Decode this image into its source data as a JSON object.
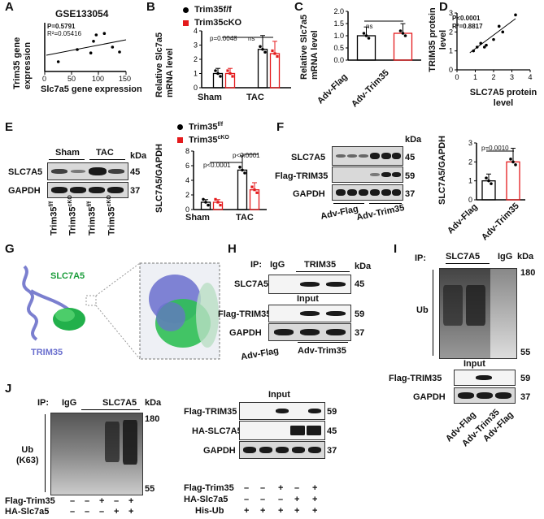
{
  "panelA": {
    "letter": "A",
    "title": "GSE133054",
    "stats": "P=0.5791\nR²=0.05416",
    "ylabel": "Trim35 gene expression",
    "xlabel": "Slc7a5 gene expression",
    "xticks": [
      "0",
      "50",
      "100",
      "150"
    ],
    "chart_data": {
      "type": "scatter",
      "title": "GSE133054",
      "xlabel": "Slc7a5 gene expression",
      "ylabel": "Trim35 gene expression",
      "xlim": [
        0,
        150
      ],
      "x": [
        25,
        60,
        85,
        90,
        95,
        110,
        125,
        138
      ],
      "y": [
        0.2,
        0.45,
        0.38,
        0.62,
        0.75,
        0.78,
        0.5,
        0.4
      ]
    }
  },
  "panelB": {
    "letter": "B",
    "legend": [
      "Trim35f/f",
      "Trim35cKO"
    ],
    "ylabel": "Relative Slc7a5 mRNA level",
    "yticks": [
      "0",
      "1",
      "2",
      "3",
      "4"
    ],
    "categories": [
      "Sham",
      "TAC"
    ],
    "p": "p=0.0048",
    "ns": "ns",
    "chart_data": {
      "type": "bar",
      "categories": [
        "Sham",
        "TAC"
      ],
      "series": [
        {
          "name": "Trim35f/f",
          "values": [
            1.0,
            2.7
          ]
        },
        {
          "name": "Trim35cKO",
          "values": [
            1.0,
            2.4
          ]
        }
      ],
      "ylim": [
        0,
        4
      ],
      "ylabel": "Relative Slc7a5 mRNA level"
    }
  },
  "panelC": {
    "letter": "C",
    "ylabel": "Relative Slc7a5 mRNA level",
    "yticks": [
      "0.0",
      "0.5",
      "1.0",
      "1.5",
      "2.0"
    ],
    "categories": [
      "Adv-Flag",
      "Adv-Trim35"
    ],
    "ns": "ns",
    "chart_data": {
      "type": "bar",
      "categories": [
        "Adv-Flag",
        "Adv-Trim35"
      ],
      "values": [
        1.0,
        1.1
      ],
      "ylim": [
        0,
        2.0
      ]
    }
  },
  "panelD": {
    "letter": "D",
    "stats": "P<0.0001\nR²=0.8817",
    "ylabel": "TRIM35 protein level",
    "xlabel": "SLC7A5 protein level",
    "xticks": [
      "0",
      "1",
      "2",
      "3",
      "4"
    ],
    "yticks": [
      "0",
      "1",
      "2",
      "3"
    ],
    "chart_data": {
      "type": "scatter",
      "xlabel": "SLC7A5 protein level",
      "ylabel": "TRIM35 protein level",
      "xlim": [
        0,
        4
      ],
      "ylim": [
        0,
        3
      ],
      "x": [
        0.9,
        1.1,
        1.3,
        1.5,
        1.6,
        2.0,
        2.3,
        2.5,
        3.2
      ],
      "y": [
        1.0,
        1.2,
        1.4,
        1.2,
        1.3,
        1.6,
        2.3,
        2.0,
        2.9
      ]
    }
  },
  "panelE": {
    "letter": "E",
    "groups": [
      "Sham",
      "TAC"
    ],
    "kda": "kDa",
    "rows": [
      {
        "name": "SLC7A5",
        "kda": "45"
      },
      {
        "name": "GAPDH",
        "kda": "37"
      }
    ],
    "lanes": [
      "Trim35f/f",
      "Trim35cKO",
      "Trim35f/f",
      "Trim35cKO"
    ],
    "legend": [
      "Trim35f/f",
      "Trim35cKO"
    ],
    "ylabel": "SLC7A5/GAPDH",
    "yticks": [
      "0",
      "2",
      "4",
      "6",
      "8"
    ],
    "categories": [
      "Sham",
      "TAC"
    ],
    "p1": "p<0.0001",
    "p2": "p<0.0001",
    "chart_data": {
      "type": "bar",
      "categories": [
        "Sham",
        "TAC"
      ],
      "series": [
        {
          "name": "Trim35f/f",
          "values": [
            1.0,
            5.4
          ]
        },
        {
          "name": "Trim35cKO",
          "values": [
            1.0,
            2.7
          ]
        }
      ],
      "ylim": [
        0,
        8
      ],
      "ylabel": "SLC7A5/GAPDH"
    }
  },
  "panelF": {
    "letter": "F",
    "kda": "kDa",
    "rows": [
      {
        "name": "SLC7A5",
        "kda": "45"
      },
      {
        "name": "Flag-TRIM35",
        "kda": "59"
      },
      {
        "name": "GAPDH",
        "kda": "37"
      }
    ],
    "groups": [
      "Adv-Flag",
      "Adv-Trim35"
    ],
    "ylabel": "SLC7A5/GAPDH",
    "yticks": [
      "0",
      "1",
      "2",
      "3"
    ],
    "categories": [
      "Adv-Flag",
      "Adv-Trim35"
    ],
    "p": "p=0.0010",
    "chart_data": {
      "type": "bar",
      "categories": [
        "Adv-Flag",
        "Adv-Trim35"
      ],
      "values": [
        1.0,
        2.0
      ],
      "ylim": [
        0,
        3
      ],
      "ylabel": "SLC7A5/GAPDH"
    }
  },
  "panelG": {
    "letter": "G",
    "slc": "SLC7A5",
    "trim": "TRIM35"
  },
  "panelH": {
    "letter": "H",
    "ip": "IP:",
    "igg": "IgG",
    "trim": "TRIM35",
    "kda": "kDa",
    "rows": [
      {
        "name": "SLC7A5",
        "kda": "45"
      },
      {
        "name": "Flag-TRIM35",
        "kda": "59"
      },
      {
        "name": "GAPDH",
        "kda": "37"
      }
    ],
    "input": "Input",
    "groups": [
      "Adv-Flag",
      "Adv-Trim35"
    ]
  },
  "panelI": {
    "letter": "I",
    "ip": "IP:",
    "slc": "SLC7A5",
    "igg": "IgG",
    "kda": "kDa",
    "ub": "Ub",
    "m1": "180",
    "m2": "55",
    "input": "Input",
    "rows": [
      {
        "name": "Flag-TRIM35",
        "kda": "59"
      },
      {
        "name": "GAPDH",
        "kda": "37"
      }
    ],
    "lanes": [
      "Adv-Flag",
      "Adv-Trim35",
      "Adv-Flag"
    ]
  },
  "panelJ": {
    "letter": "J",
    "ip": "IP:",
    "igg": "IgG",
    "slc": "SLC7A5",
    "kda": "kDa",
    "ub": "Ub\n(K63)",
    "m1": "180",
    "m2": "55",
    "input": "Input",
    "rows": [
      {
        "name": "Flag-TRIM35",
        "kda": "59"
      },
      {
        "name": "HA-SLC7A5",
        "kda": "45"
      },
      {
        "name": "GAPDH",
        "kda": "37"
      }
    ],
    "conds": [
      {
        "name": "Flag-Trim35",
        "vals": [
          "–",
          "–",
          "+",
          "–",
          "+"
        ]
      },
      {
        "name": "HA-Slc7a5",
        "vals": [
          "–",
          "–",
          "–",
          "+",
          "+"
        ]
      },
      {
        "name": "His-Ub",
        "vals": [
          "+",
          "+",
          "+",
          "+",
          "+"
        ]
      }
    ]
  }
}
